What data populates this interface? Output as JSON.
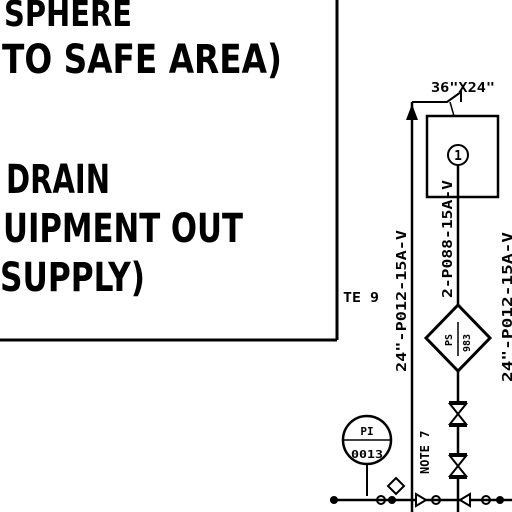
{
  "legend_box": {
    "lines": [
      "SPHERE",
      "TO SAFE AREA)",
      "DRAIN",
      "UIPMENT OUT",
      "SUPPLY)"
    ]
  },
  "diagram": {
    "note_te": "TE 9",
    "equipment_size": "36\"X24\"",
    "equipment_tag": "1",
    "line_main": "24\"-P012-15A-V",
    "line_inner": "2-P088-15A-V",
    "line_right": "24\"-P012-15A-V",
    "diamond_top": "PS",
    "diamond_bottom": "983",
    "pi_top": "PI",
    "pi_bottom": "0013",
    "note_7": "NOTE 7"
  }
}
